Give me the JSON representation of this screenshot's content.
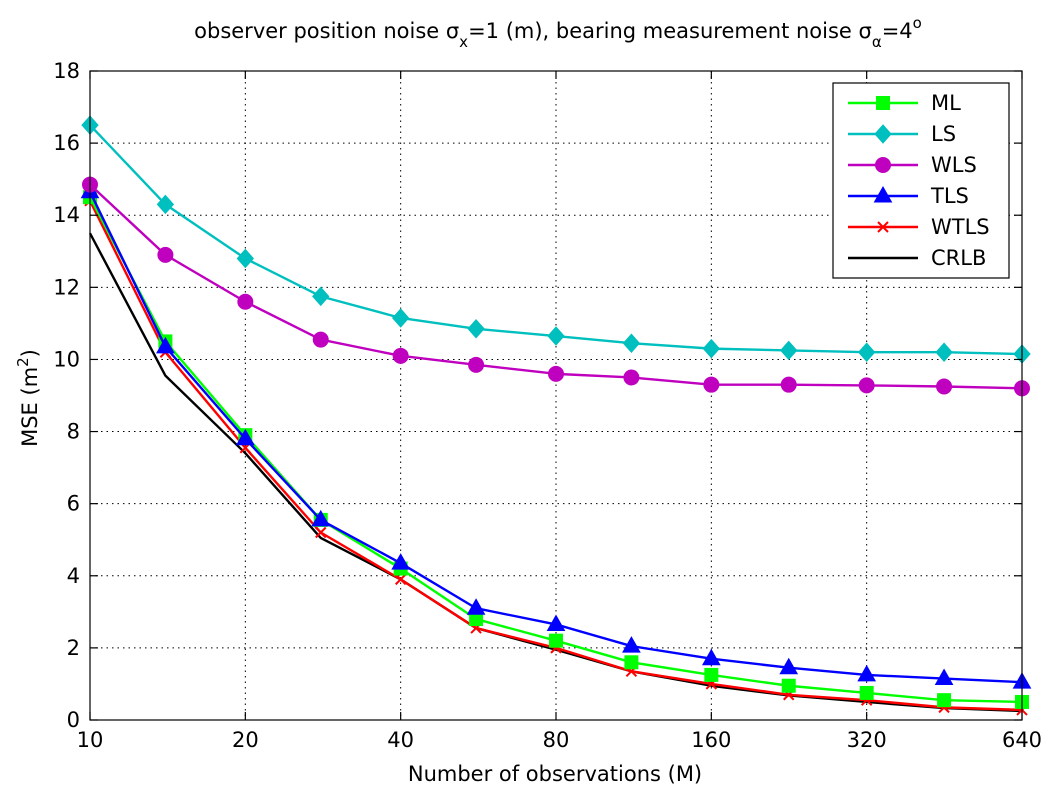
{
  "chart_data": {
    "type": "line",
    "title": {
      "part1": "observer position noise σ",
      "sub1": "x",
      "part2": "=1 (m), bearing measurement noise σ",
      "sub2": "α",
      "part3": "=4",
      "sup3": "o"
    },
    "xlabel": "Number of observations (M)",
    "ylabel": {
      "main": "MSE (m",
      "sup": "2",
      "end": ")"
    },
    "x_scale": "log2",
    "xlim": [
      10,
      640
    ],
    "ylim": [
      0,
      18
    ],
    "x_ticks": [
      10,
      20,
      40,
      80,
      160,
      320,
      640
    ],
    "x_tick_labels": [
      "10",
      "20",
      "40",
      "80",
      "160",
      "320",
      "640"
    ],
    "y_ticks": [
      0,
      2,
      4,
      6,
      8,
      10,
      12,
      14,
      16,
      18
    ],
    "y_tick_labels": [
      "0",
      "2",
      "4",
      "6",
      "8",
      "10",
      "12",
      "14",
      "16",
      "18"
    ],
    "grid": true,
    "legend_position": "top-right",
    "x": [
      10,
      14,
      20,
      28,
      40,
      56,
      80,
      112,
      160,
      226,
      320,
      452,
      640
    ],
    "series": [
      {
        "name": "ML",
        "color": "#00ff00",
        "marker": "square",
        "values": [
          14.5,
          10.5,
          7.9,
          5.55,
          4.2,
          2.8,
          2.2,
          1.6,
          1.25,
          0.95,
          0.75,
          0.55,
          0.5
        ]
      },
      {
        "name": "LS",
        "color": "#00bfbf",
        "marker": "diamond",
        "values": [
          16.5,
          14.3,
          12.8,
          11.75,
          11.15,
          10.85,
          10.65,
          10.45,
          10.3,
          10.25,
          10.2,
          10.2,
          10.15
        ]
      },
      {
        "name": "WLS",
        "color": "#bf00bf",
        "marker": "circle",
        "values": [
          14.85,
          12.9,
          11.6,
          10.55,
          10.1,
          9.85,
          9.6,
          9.5,
          9.3,
          9.3,
          9.28,
          9.25,
          9.2
        ]
      },
      {
        "name": "TLS",
        "color": "#0000ff",
        "marker": "triangle",
        "values": [
          14.65,
          10.35,
          7.8,
          5.55,
          4.35,
          3.1,
          2.65,
          2.05,
          1.7,
          1.45,
          1.25,
          1.15,
          1.05
        ]
      },
      {
        "name": "WTLS",
        "color": "#ff0000",
        "marker": "x",
        "values": [
          14.4,
          10.2,
          7.55,
          5.2,
          3.9,
          2.55,
          2.0,
          1.35,
          1.0,
          0.7,
          0.55,
          0.35,
          0.28
        ]
      },
      {
        "name": "CRLB",
        "color": "#000000",
        "marker": "none",
        "values": [
          13.5,
          9.55,
          7.4,
          5.05,
          3.9,
          2.55,
          1.95,
          1.35,
          0.95,
          0.68,
          0.5,
          0.33,
          0.25
        ]
      }
    ]
  }
}
